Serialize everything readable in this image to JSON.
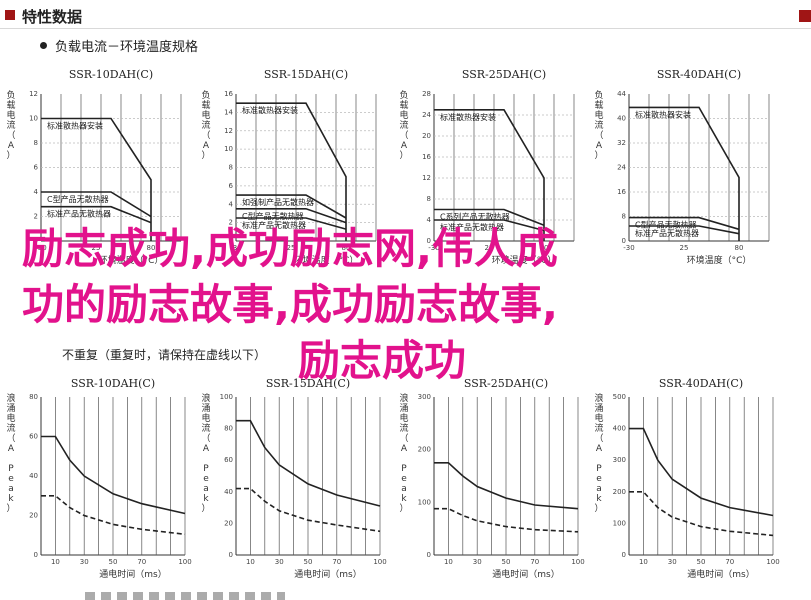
{
  "header": {
    "title": "特性数据"
  },
  "section1": {
    "bullet": "负载电流－环境温度规格"
  },
  "section2": {
    "note": "不重复（重复时，请保持在虚线以下）"
  },
  "overlay": {
    "line1": "励志成功,成功励志网,伟人成",
    "line2": "功的励志故事,成功励志故事,",
    "line3": "励志成功"
  },
  "colors": {
    "header_accent": "#a01515",
    "overlay_pink": "#e2128c"
  },
  "top_labels": {
    "ylabel": "负载电流（A）",
    "xlabel": "环境温度（°C）"
  },
  "bottom_labels": {
    "ylabel": "浪涌电流（A Peak）",
    "xlabel": "通电时间（ms）"
  },
  "chart_data": [
    {
      "type": "line",
      "panel": "top",
      "title": "SSR-10DAH(C)",
      "x": [
        -30,
        25,
        80
      ],
      "xlim": [
        -30,
        110
      ],
      "ylim": [
        0,
        12
      ],
      "yticks": [
        "12",
        "10",
        "8",
        "6",
        "4",
        "2",
        "0"
      ],
      "series": [
        {
          "label": "标准散热器安装",
          "points": [
            [
              -30,
              10
            ],
            [
              40,
              10
            ],
            [
              80,
              5
            ],
            [
              80,
              0
            ]
          ]
        },
        {
          "label": "C型产品无散热器",
          "points": [
            [
              -30,
              4
            ],
            [
              40,
              4
            ],
            [
              80,
              2
            ]
          ]
        },
        {
          "label": "标准产品无散热器",
          "points": [
            [
              -30,
              2.8
            ],
            [
              40,
              2.8
            ],
            [
              80,
              1.5
            ]
          ]
        }
      ]
    },
    {
      "type": "line",
      "panel": "top",
      "title": "SSR-15DAH(C)",
      "x": [
        -30,
        25,
        80
      ],
      "xlim": [
        -30,
        110
      ],
      "ylim": [
        0,
        16
      ],
      "yticks": [
        "16",
        "14",
        "12",
        "10",
        "8",
        "6",
        "4",
        "2",
        "0"
      ],
      "series": [
        {
          "label": "标准散热器安装",
          "points": [
            [
              -30,
              15
            ],
            [
              40,
              15
            ],
            [
              80,
              7
            ],
            [
              80,
              0
            ]
          ]
        },
        {
          "label": "如强制产品无散热器",
          "points": [
            [
              -30,
              5
            ],
            [
              40,
              5
            ],
            [
              80,
              2.5
            ]
          ]
        },
        {
          "label": "C型产品无散热器",
          "points": [
            [
              -30,
              3.5
            ],
            [
              40,
              3.5
            ],
            [
              80,
              2
            ]
          ]
        },
        {
          "label": "标准产品无散热器",
          "points": [
            [
              -30,
              2.5
            ],
            [
              40,
              2.5
            ],
            [
              80,
              1.3
            ]
          ]
        }
      ]
    },
    {
      "type": "line",
      "panel": "top",
      "title": "SSR-25DAH(C)",
      "x": [
        -30,
        25,
        80
      ],
      "xlim": [
        -30,
        110
      ],
      "ylim": [
        0,
        28
      ],
      "yticks": [
        "28",
        "24",
        "20",
        "16",
        "12",
        "8",
        "4",
        "0"
      ],
      "series": [
        {
          "label": "标准散热器安装",
          "points": [
            [
              -30,
              25
            ],
            [
              40,
              25
            ],
            [
              80,
              12
            ],
            [
              80,
              0
            ]
          ]
        },
        {
          "label": "C系列产品无散热器",
          "points": [
            [
              -30,
              6
            ],
            [
              40,
              6
            ],
            [
              80,
              3
            ]
          ]
        },
        {
          "label": "标准产品无散热器",
          "points": [
            [
              -30,
              4
            ],
            [
              40,
              4
            ],
            [
              80,
              2
            ]
          ]
        }
      ]
    },
    {
      "type": "line",
      "panel": "top",
      "title": "SSR-40DAH(C)",
      "x": [
        -30,
        25,
        80
      ],
      "xlim": [
        -30,
        110
      ],
      "ylim": [
        0,
        44
      ],
      "yticks": [
        "44",
        "40",
        "32",
        "24",
        "16",
        "8",
        "0"
      ],
      "series": [
        {
          "label": "标准散热器安装",
          "points": [
            [
              -30,
              40
            ],
            [
              40,
              40
            ],
            [
              80,
              19
            ],
            [
              80,
              0
            ]
          ]
        },
        {
          "label": "C型产品无散热器",
          "points": [
            [
              -30,
              7
            ],
            [
              40,
              7
            ],
            [
              80,
              3.5
            ]
          ]
        },
        {
          "label": "标准产品无散热器",
          "points": [
            [
              -30,
              4.5
            ],
            [
              40,
              4.5
            ],
            [
              80,
              2.2
            ]
          ]
        }
      ]
    },
    {
      "type": "line",
      "panel": "bottom",
      "title": "SSR-10DAH(C)",
      "x": [
        10,
        30,
        50,
        70,
        100
      ],
      "xlabels": [
        "10",
        "30",
        "50",
        "70",
        "100"
      ],
      "xlim": [
        0,
        100
      ],
      "ylim": [
        0,
        80
      ],
      "yticks": [
        "80",
        "60",
        "40",
        "20",
        "0"
      ],
      "series": [
        {
          "style": "solid",
          "points": [
            [
              0,
              60
            ],
            [
              10,
              60
            ],
            [
              20,
              48
            ],
            [
              30,
              40
            ],
            [
              50,
              31
            ],
            [
              70,
              26
            ],
            [
              100,
              21
            ]
          ]
        },
        {
          "style": "dash",
          "points": [
            [
              0,
              30
            ],
            [
              10,
              30
            ],
            [
              20,
              24
            ],
            [
              30,
              20
            ],
            [
              50,
              15.5
            ],
            [
              70,
              13
            ],
            [
              100,
              10.5
            ]
          ]
        }
      ]
    },
    {
      "type": "line",
      "panel": "bottom",
      "title": "SSR-15DAH(C)",
      "x": [
        10,
        30,
        50,
        70,
        100
      ],
      "xlabels": [
        "10",
        "30",
        "50",
        "70",
        "100"
      ],
      "xlim": [
        0,
        100
      ],
      "ylim": [
        0,
        100
      ],
      "yticks": [
        "100",
        "80",
        "60",
        "40",
        "20",
        "0"
      ],
      "series": [
        {
          "style": "solid",
          "points": [
            [
              0,
              85
            ],
            [
              10,
              85
            ],
            [
              20,
              68
            ],
            [
              30,
              57
            ],
            [
              50,
              45
            ],
            [
              70,
              38
            ],
            [
              100,
              31
            ]
          ]
        },
        {
          "style": "dash",
          "points": [
            [
              0,
              42
            ],
            [
              10,
              42
            ],
            [
              20,
              34
            ],
            [
              30,
              28
            ],
            [
              50,
              22
            ],
            [
              70,
              19
            ],
            [
              100,
              15
            ]
          ]
        }
      ]
    },
    {
      "type": "line",
      "panel": "bottom",
      "title": "SSR-25DAH(C)",
      "x": [
        10,
        30,
        50,
        70,
        100
      ],
      "xlabels": [
        "10",
        "30",
        "50",
        "70",
        "100"
      ],
      "xlim": [
        0,
        100
      ],
      "ylim": [
        0,
        300
      ],
      "yticks": [
        "300",
        "200",
        "100",
        "0"
      ],
      "series": [
        {
          "style": "solid",
          "points": [
            [
              0,
              175
            ],
            [
              10,
              175
            ],
            [
              20,
              150
            ],
            [
              30,
              130
            ],
            [
              50,
              108
            ],
            [
              70,
              95
            ],
            [
              100,
              88
            ]
          ]
        },
        {
          "style": "dash",
          "points": [
            [
              0,
              88
            ],
            [
              10,
              88
            ],
            [
              20,
              75
            ],
            [
              30,
              65
            ],
            [
              50,
              54
            ],
            [
              70,
              48
            ],
            [
              100,
              44
            ]
          ]
        }
      ]
    },
    {
      "type": "line",
      "panel": "bottom",
      "title": "SSR-40DAH(C)",
      "x": [
        10,
        30,
        50,
        70,
        100
      ],
      "xlabels": [
        "10",
        "30",
        "50",
        "70",
        "100"
      ],
      "xlim": [
        0,
        100
      ],
      "ylim": [
        0,
        500
      ],
      "yticks": [
        "500",
        "400",
        "300",
        "200",
        "100",
        "0"
      ],
      "series": [
        {
          "style": "solid",
          "points": [
            [
              0,
              400
            ],
            [
              10,
              400
            ],
            [
              20,
              300
            ],
            [
              30,
              240
            ],
            [
              50,
              180
            ],
            [
              70,
              150
            ],
            [
              100,
              125
            ]
          ]
        },
        {
          "style": "dash",
          "points": [
            [
              0,
              200
            ],
            [
              10,
              200
            ],
            [
              20,
              150
            ],
            [
              30,
              120
            ],
            [
              50,
              90
            ],
            [
              70,
              75
            ],
            [
              100,
              62
            ]
          ]
        }
      ]
    }
  ]
}
